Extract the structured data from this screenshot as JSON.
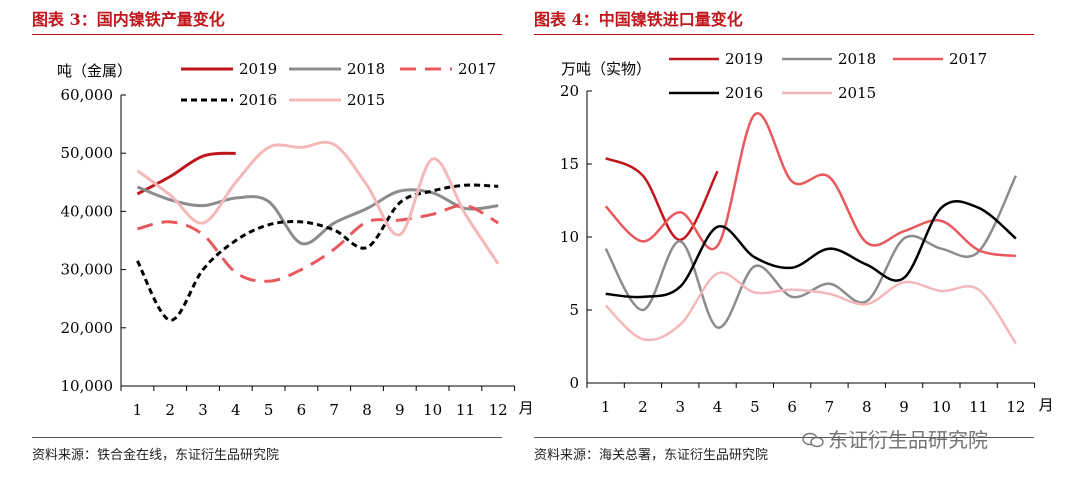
{
  "watermark": "东证衍生品研究院",
  "charts": [
    {
      "fig_title": "图表 3：国内镍铁产量变化",
      "source": "资料来源：铁合金在线，东证衍生品研究院",
      "chart_data": {
        "type": "line",
        "ylabel": "吨（金属）",
        "xlabel": "月",
        "ylim": [
          10000,
          60000
        ],
        "yticks": [
          10000,
          20000,
          30000,
          40000,
          50000,
          60000
        ],
        "ytick_labels": [
          "10,000",
          "20,000",
          "30,000",
          "40,000",
          "50,000",
          "60,000"
        ],
        "x": [
          1,
          2,
          3,
          4,
          5,
          6,
          7,
          8,
          9,
          10,
          11,
          12
        ],
        "xtick_labels": [
          "1",
          "2",
          "3",
          "4",
          "5",
          "6",
          "7",
          "8",
          "9",
          "10",
          "11",
          "12"
        ],
        "grid": false,
        "legend_position": "top",
        "series": [
          {
            "name": "2019",
            "color": "#c0151b",
            "dash": "solid",
            "width": 3,
            "values": [
              43000,
              46000,
              49500,
              50000,
              null,
              null,
              null,
              null,
              null,
              null,
              null,
              null
            ]
          },
          {
            "name": "2018",
            "color": "#8c8c8c",
            "dash": "solid",
            "width": 3,
            "values": [
              44200,
              42000,
              41000,
              42300,
              41700,
              34500,
              38000,
              40500,
              43500,
              43200,
              40500,
              41000
            ]
          },
          {
            "name": "2017",
            "color": "#e8585d",
            "dash": "long",
            "width": 3,
            "values": [
              37000,
              38200,
              36000,
              29500,
              28000,
              30000,
              33500,
              38200,
              38500,
              39500,
              41000,
              38000
            ]
          },
          {
            "name": "2016",
            "color": "#000000",
            "dash": "short",
            "width": 3,
            "values": [
              31500,
              21300,
              30000,
              35000,
              37700,
              38200,
              36800,
              33800,
              41500,
              43500,
              44500,
              44300
            ]
          },
          {
            "name": "2015",
            "color": "#f4b8ba",
            "dash": "solid",
            "width": 3,
            "values": [
              47000,
              42800,
              38000,
              45000,
              51000,
              51000,
              51500,
              44500,
              36000,
              49000,
              39500,
              31000
            ]
          }
        ]
      }
    },
    {
      "fig_title": "图表 4：中国镍铁进口量变化",
      "source": "资料来源：海关总署，东证衍生品研究院",
      "chart_data": {
        "type": "line",
        "ylabel": "万吨（实物）",
        "xlabel": "月",
        "ylim": [
          0,
          20
        ],
        "yticks": [
          0,
          5,
          10,
          15,
          20
        ],
        "ytick_labels": [
          "0",
          "5",
          "10",
          "15",
          "20"
        ],
        "x": [
          1,
          2,
          3,
          4,
          5,
          6,
          7,
          8,
          9,
          10,
          11,
          12
        ],
        "xtick_labels": [
          "1",
          "2",
          "3",
          "4",
          "5",
          "6",
          "7",
          "8",
          "9",
          "10",
          "11",
          "12"
        ],
        "grid": false,
        "legend_position": "top",
        "series": [
          {
            "name": "2019",
            "color": "#c0151b",
            "dash": "solid",
            "width": 2.5,
            "values": [
              15.4,
              14.2,
              9.8,
              14.5,
              null,
              null,
              null,
              null,
              null,
              null,
              null,
              null
            ]
          },
          {
            "name": "2018",
            "color": "#8c8c8c",
            "dash": "solid",
            "width": 2.5,
            "values": [
              9.2,
              5.0,
              9.7,
              3.8,
              8.0,
              5.9,
              6.8,
              5.6,
              9.9,
              9.2,
              9.0,
              14.2
            ]
          },
          {
            "name": "2017",
            "color": "#e8585d",
            "dash": "solid",
            "width": 2.5,
            "values": [
              12.1,
              9.7,
              11.7,
              9.4,
              18.4,
              13.8,
              14.1,
              9.6,
              10.4,
              11.1,
              9.1,
              8.7
            ]
          },
          {
            "name": "2016",
            "color": "#000000",
            "dash": "solid",
            "width": 2.5,
            "values": [
              6.1,
              5.9,
              6.6,
              10.7,
              8.6,
              7.9,
              9.2,
              8.1,
              7.2,
              12.0,
              12.0,
              9.9
            ]
          },
          {
            "name": "2015",
            "color": "#f4b8ba",
            "dash": "solid",
            "width": 2.5,
            "values": [
              5.3,
              3.0,
              4.0,
              7.5,
              6.2,
              6.4,
              6.1,
              5.4,
              6.9,
              6.3,
              6.4,
              2.7
            ]
          }
        ]
      }
    }
  ]
}
